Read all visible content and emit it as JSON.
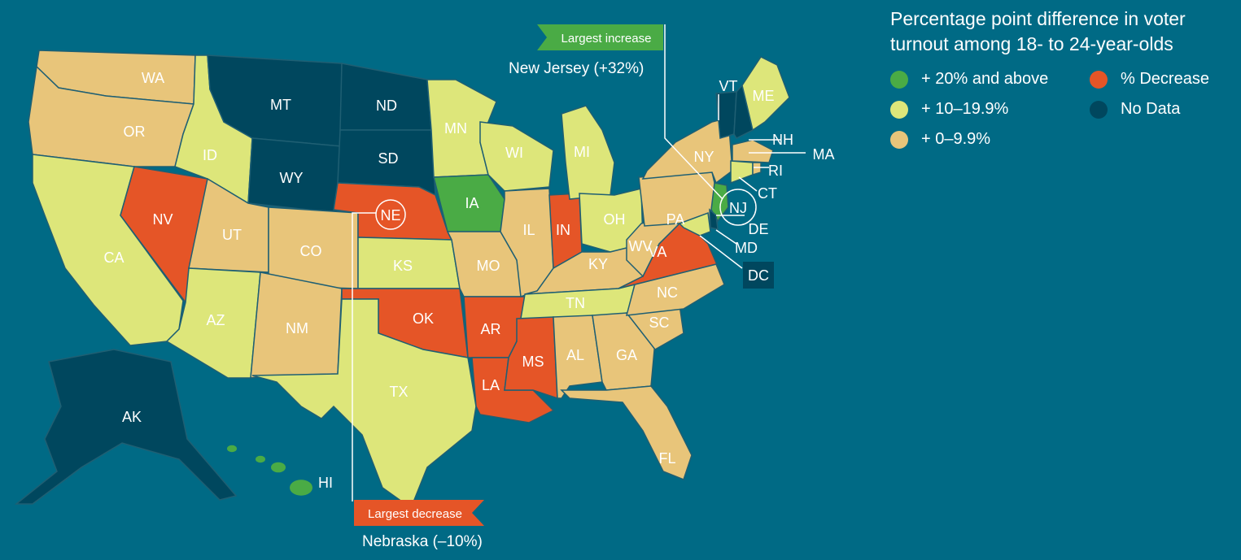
{
  "legend": {
    "title_line1": "Percentage point difference in voter",
    "title_line2": "turnout among 18- to 24-year-olds",
    "items": [
      {
        "label": "+ 20% and above",
        "color": "#4aab45",
        "key": "g20"
      },
      {
        "label": "% Decrease",
        "color": "#e55527",
        "key": "dec"
      },
      {
        "label": "+ 10–19.9%",
        "color": "#dde67a",
        "key": "g10"
      },
      {
        "label": "No Data",
        "color": "#00475e",
        "key": "nd"
      },
      {
        "label": "+ 0–9.9%",
        "color": "#e8c57a",
        "key": "g0"
      }
    ]
  },
  "colors": {
    "background": "#006a85",
    "border": "#1f5f73"
  },
  "annotations": {
    "increase": {
      "flag": "Largest increase",
      "text": "New Jersey (+32%)",
      "state": "NJ"
    },
    "decrease": {
      "flag": "Largest decrease",
      "text": "Nebraska (–10%)",
      "state": "NE"
    }
  },
  "states": {
    "WA": "g0",
    "OR": "g0",
    "CA": "g10",
    "NV": "dec",
    "ID": "g10",
    "MT": "nd",
    "WY": "nd",
    "UT": "g0",
    "AZ": "g10",
    "CO": "g0",
    "NM": "g0",
    "ND": "nd",
    "SD": "nd",
    "NE": "dec",
    "KS": "g10",
    "OK": "dec",
    "TX": "g10",
    "MN": "g10",
    "IA": "g20",
    "MO": "g0",
    "AR": "dec",
    "LA": "dec",
    "WI": "g10",
    "IL": "g0",
    "MI": "g10",
    "IN": "dec",
    "OH": "g10",
    "KY": "g0",
    "TN": "g10",
    "MS": "dec",
    "AL": "g0",
    "GA": "g0",
    "FL": "g0",
    "SC": "g0",
    "NC": "g0",
    "VA": "dec",
    "WV": "g0",
    "PA": "g0",
    "NY": "g0",
    "VT": "nd",
    "NH": "nd",
    "ME": "g10",
    "MA": "g0",
    "CT": "g10",
    "RI": "g0",
    "NJ": "g20",
    "DE": "nd",
    "MD": "g10",
    "DC": "nd",
    "AK": "nd",
    "HI": "g20"
  }
}
